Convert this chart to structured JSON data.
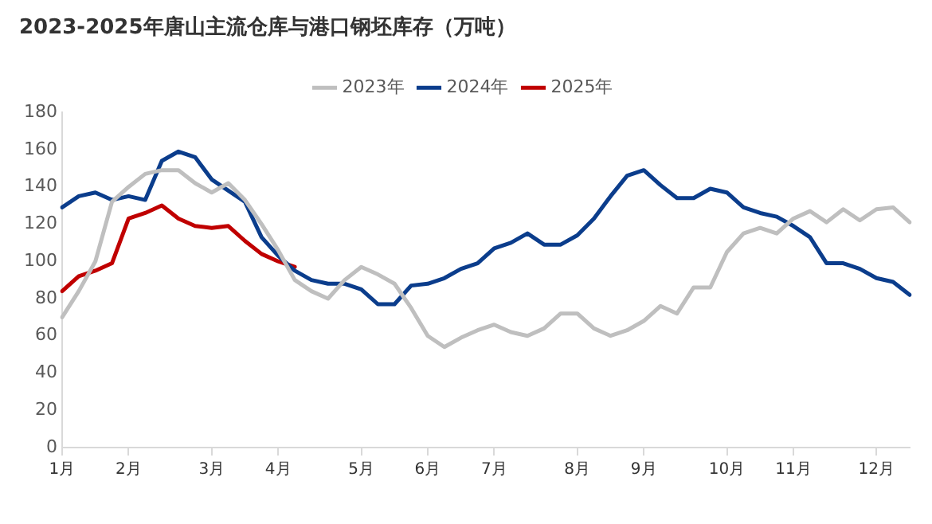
{
  "chart_data": {
    "type": "line",
    "title": "2023-2025年唐山主流仓库与港口钢坯库存（万吨）",
    "categories": [
      "1月",
      null,
      null,
      null,
      "2月",
      null,
      null,
      null,
      null,
      "3月",
      null,
      null,
      null,
      "4月",
      null,
      null,
      null,
      null,
      "5月",
      null,
      null,
      null,
      "6月",
      null,
      null,
      null,
      "7月",
      null,
      null,
      null,
      null,
      "8月",
      null,
      null,
      null,
      "9月",
      null,
      null,
      null,
      null,
      "10月",
      null,
      null,
      null,
      "11月",
      null,
      null,
      null,
      null,
      "12月",
      null,
      null
    ],
    "ylim": [
      0,
      180
    ],
    "yticks": [
      0,
      20,
      40,
      60,
      80,
      100,
      120,
      140,
      160,
      180
    ],
    "grid": false,
    "legend": "top",
    "marker": "none",
    "line_style": "solid",
    "series": [
      {
        "name": "2023年",
        "color": "#bfbfbf",
        "values": [
          70,
          84,
          100,
          132,
          140,
          147,
          149,
          149,
          142,
          137,
          142,
          133,
          120,
          106,
          90,
          84,
          80,
          90,
          97,
          93,
          88,
          75,
          60,
          54,
          59,
          63,
          66,
          62,
          60,
          64,
          72,
          72,
          64,
          60,
          63,
          68,
          76,
          72,
          86,
          86,
          105,
          115,
          118,
          115,
          123,
          127,
          121,
          128,
          122,
          128,
          129,
          121
        ]
      },
      {
        "name": "2024年",
        "color": "#0b3d8c",
        "values": [
          129,
          135,
          137,
          133,
          135,
          133,
          154,
          159,
          156,
          144,
          138,
          132,
          113,
          103,
          95,
          90,
          88,
          88,
          85,
          77,
          77,
          87,
          88,
          91,
          96,
          99,
          107,
          110,
          115,
          109,
          109,
          114,
          123,
          135,
          146,
          149,
          141,
          134,
          134,
          139,
          137,
          129,
          126,
          124,
          119,
          113,
          99,
          99,
          96,
          91,
          89,
          82
        ]
      },
      {
        "name": "2025年",
        "color": "#c00000",
        "values": [
          84,
          92,
          95,
          99,
          123,
          126,
          130,
          123,
          119,
          118,
          119,
          111,
          104,
          100,
          97,
          null,
          null,
          null,
          null,
          null,
          null,
          null,
          null,
          null,
          null,
          null,
          null,
          null,
          null,
          null,
          null,
          null,
          null,
          null,
          null,
          null,
          null,
          null,
          null,
          null,
          null,
          null,
          null,
          null,
          null,
          null,
          null,
          null,
          null,
          null,
          null,
          null
        ]
      }
    ]
  }
}
